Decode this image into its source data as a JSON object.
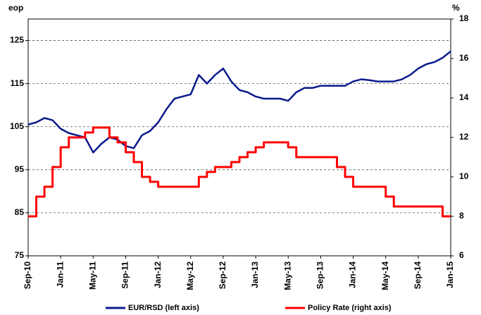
{
  "chart_data": {
    "type": "line",
    "y_label": "eop",
    "y2_label": "%",
    "categories": [
      "Sep-10",
      null,
      null,
      null,
      "Jan-11",
      null,
      null,
      null,
      "May-11",
      null,
      null,
      null,
      "Sep-11",
      null,
      null,
      null,
      "Jan-12",
      null,
      null,
      null,
      "May-12",
      null,
      null,
      null,
      "Sep-12",
      null,
      null,
      null,
      "Jan-13",
      null,
      null,
      null,
      "May-13",
      null,
      null,
      null,
      "Sep-13",
      null,
      null,
      null,
      "Jan-14",
      null,
      null,
      null,
      "May-14",
      null,
      null,
      null,
      "Sep-14",
      null,
      null,
      null,
      "Jan-15"
    ],
    "series": [
      {
        "name": "EUR/RSD (left axis)",
        "color": "#0c1a8c",
        "axis": "y",
        "step": false,
        "values": [
          105.5,
          106,
          107,
          106.5,
          104.5,
          103.5,
          103,
          102.5,
          99,
          101,
          102.5,
          102,
          100.5,
          100,
          103,
          104,
          106,
          109,
          111.5,
          112,
          112.5,
          117,
          115,
          117,
          118.5,
          115.5,
          113.5,
          113,
          112,
          111.5,
          111.5,
          111.5,
          111,
          113,
          114,
          114,
          114.5,
          114.5,
          114.5,
          114.5,
          115.5,
          116,
          115.8,
          115.5,
          115.5,
          115.5,
          116,
          117,
          118.5,
          119.5,
          120,
          121,
          122.5
        ]
      },
      {
        "name": "Policy Rate (right axis)",
        "color": "#ff0000",
        "axis": "y2",
        "step": true,
        "values": [
          8,
          9,
          9.5,
          10.5,
          11.5,
          12,
          12,
          12.25,
          12.5,
          12.5,
          12,
          11.75,
          11.25,
          10.75,
          10,
          9.75,
          9.5,
          9.5,
          9.5,
          9.5,
          9.5,
          10,
          10.25,
          10.5,
          10.5,
          10.75,
          11,
          11.25,
          11.5,
          11.75,
          11.75,
          11.75,
          11.5,
          11,
          11,
          11,
          11,
          11,
          10.5,
          10,
          9.5,
          9.5,
          9.5,
          9.5,
          9,
          8.5,
          8.5,
          8.5,
          8.5,
          8.5,
          8.5,
          8,
          8
        ]
      }
    ],
    "ylim": [
      75,
      130
    ],
    "yticks": [
      75,
      85,
      95,
      105,
      115,
      125
    ],
    "y2lim": [
      6,
      18
    ],
    "y2ticks": [
      6,
      8,
      10,
      12,
      14,
      16,
      18
    ],
    "grid": true,
    "legend": "bottom"
  }
}
